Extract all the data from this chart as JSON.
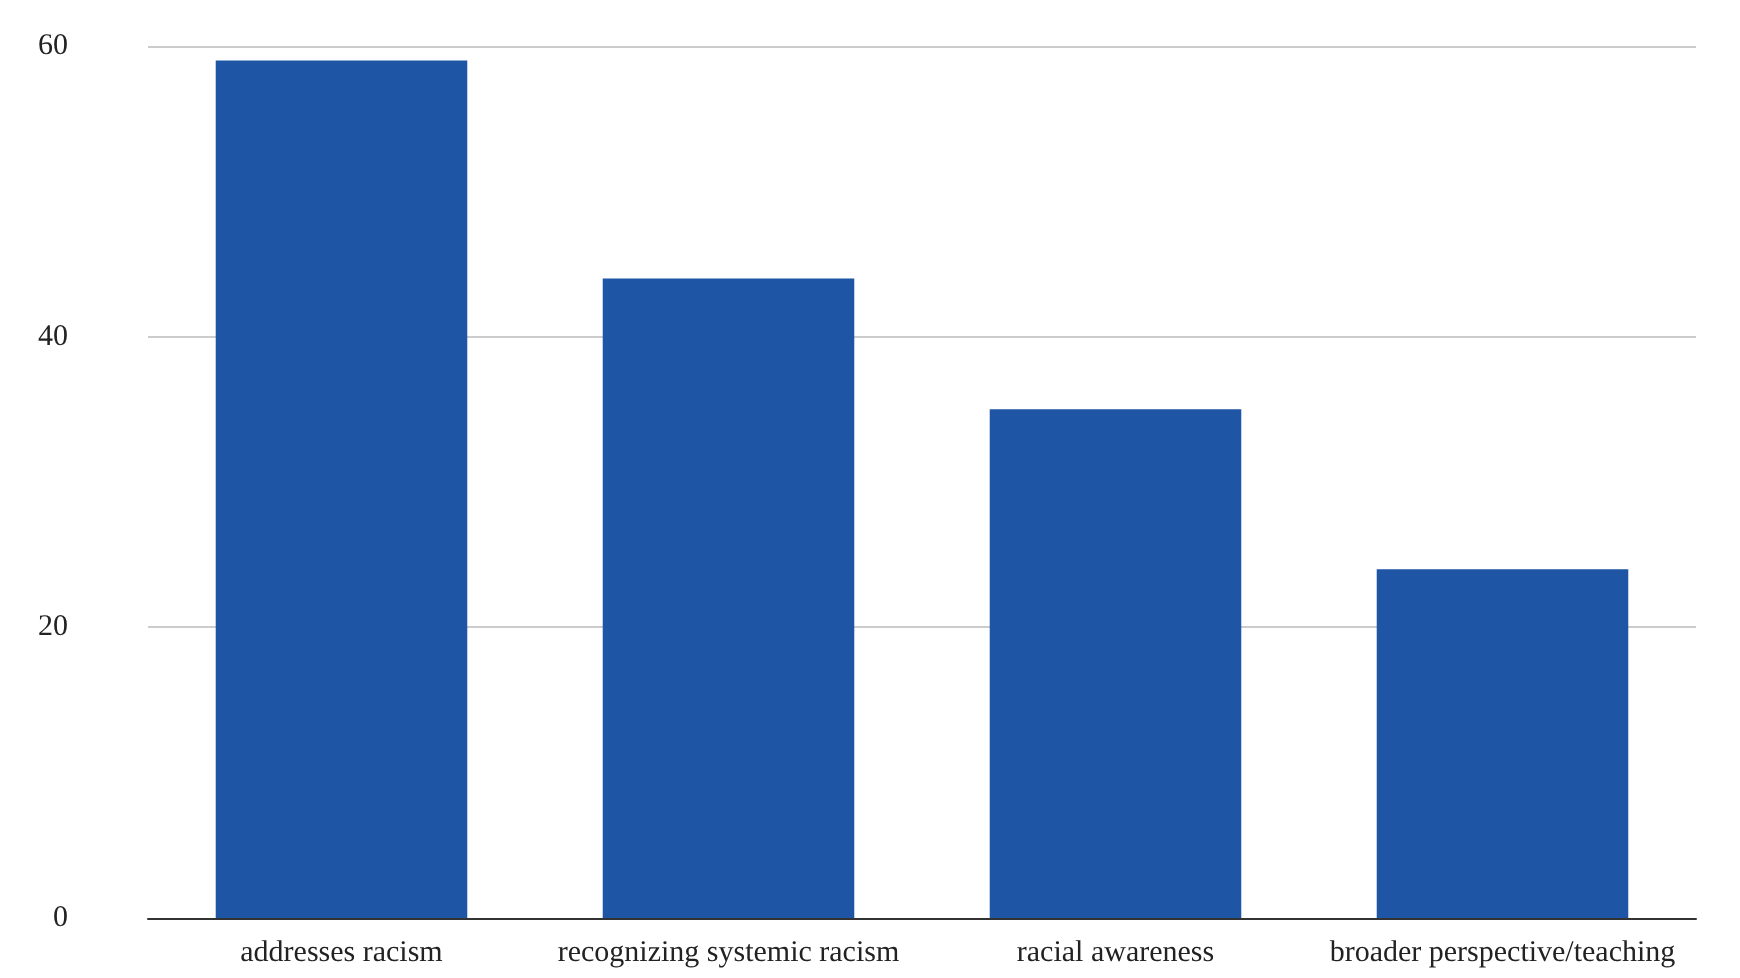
{
  "chart_data": {
    "type": "bar",
    "categories": [
      "addresses racism",
      "recognizing systemic racism",
      "racial awareness",
      "broader perspective/teaching"
    ],
    "values": [
      59,
      44,
      35,
      24
    ],
    "color": "#1f55a5",
    "ylim": [
      0,
      60
    ],
    "yticks": [
      0,
      20,
      40,
      60
    ],
    "grid": "y"
  }
}
